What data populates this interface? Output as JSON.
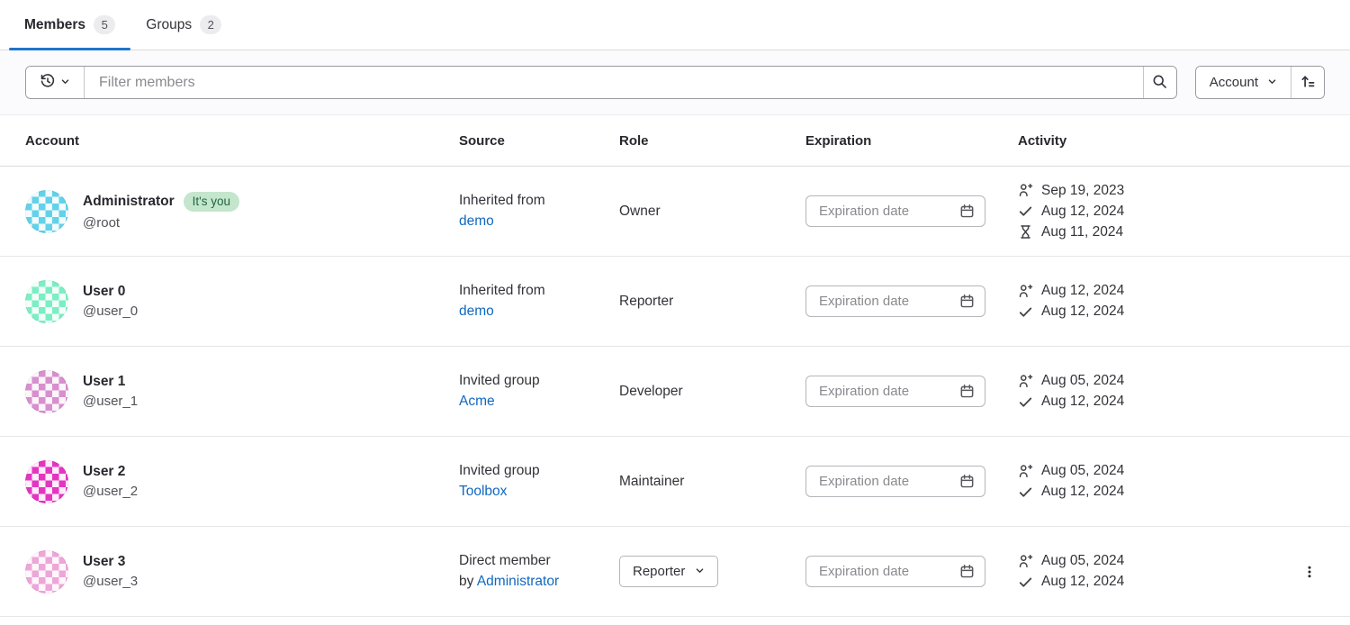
{
  "colors": {
    "accent": "#1f75cb",
    "link": "#1068bf",
    "its_you_badge_bg": "#c3e6cd",
    "its_you_badge_text": "#24663b"
  },
  "tabs": {
    "items": [
      {
        "label": "Members",
        "count": "5",
        "active": true
      },
      {
        "label": "Groups",
        "count": "2",
        "active": false
      }
    ]
  },
  "filter": {
    "placeholder": "Filter members",
    "sort_field": "Account"
  },
  "table": {
    "headers": [
      "Account",
      "Source",
      "Role",
      "Expiration",
      "Activity"
    ],
    "expiration_placeholder": "Expiration date"
  },
  "members": [
    {
      "name": "Administrator",
      "badge": "It's you",
      "username": "@root",
      "avatar_color": "#63d1e9",
      "source_text": "Inherited from",
      "source_prefix": "",
      "source_link": "demo",
      "role": "Owner",
      "role_editable": false,
      "has_actions": false,
      "activity": [
        {
          "icon": "user-plus",
          "date": "Sep 19, 2023"
        },
        {
          "icon": "check",
          "date": "Aug 12, 2024"
        },
        {
          "icon": "hourglass",
          "date": "Aug 11, 2024"
        }
      ]
    },
    {
      "name": "User 0",
      "badge": "",
      "username": "@user_0",
      "avatar_color": "#7beec2",
      "source_text": "Inherited from",
      "source_prefix": "",
      "source_link": "demo",
      "role": "Reporter",
      "role_editable": false,
      "has_actions": false,
      "activity": [
        {
          "icon": "user-plus",
          "date": "Aug 12, 2024"
        },
        {
          "icon": "check",
          "date": "Aug 12, 2024"
        }
      ]
    },
    {
      "name": "User 1",
      "badge": "",
      "username": "@user_1",
      "avatar_color": "#d78fce",
      "source_text": "Invited group",
      "source_prefix": "",
      "source_link": "Acme",
      "role": "Developer",
      "role_editable": false,
      "has_actions": false,
      "activity": [
        {
          "icon": "user-plus",
          "date": "Aug 05, 2024"
        },
        {
          "icon": "check",
          "date": "Aug 12, 2024"
        }
      ]
    },
    {
      "name": "User 2",
      "badge": "",
      "username": "@user_2",
      "avatar_color": "#e435c2",
      "source_text": "Invited group",
      "source_prefix": "",
      "source_link": "Toolbox",
      "role": "Maintainer",
      "role_editable": false,
      "has_actions": false,
      "activity": [
        {
          "icon": "user-plus",
          "date": "Aug 05, 2024"
        },
        {
          "icon": "check",
          "date": "Aug 12, 2024"
        }
      ]
    },
    {
      "name": "User 3",
      "badge": "",
      "username": "@user_3",
      "avatar_color": "#eda6d8",
      "source_text": "Direct member",
      "source_prefix": "by ",
      "source_link": "Administrator",
      "role": "Reporter",
      "role_editable": true,
      "has_actions": true,
      "activity": [
        {
          "icon": "user-plus",
          "date": "Aug 05, 2024"
        },
        {
          "icon": "check",
          "date": "Aug 12, 2024"
        }
      ]
    }
  ]
}
